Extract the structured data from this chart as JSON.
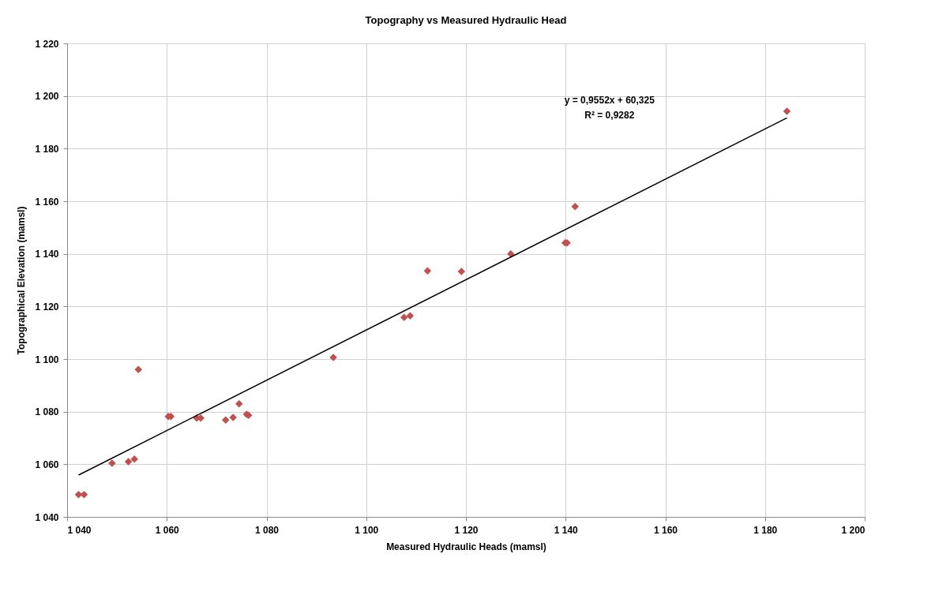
{
  "chart_data": {
    "type": "scatter",
    "title": "Topography vs Measured Hydraulic Head",
    "xlabel": "Measured Hydraulic Heads (mamsl)",
    "ylabel": "Topographical Elevation (mamsl)",
    "xlim": [
      1040,
      1200
    ],
    "ylim": [
      1040,
      1220
    ],
    "xticks": [
      {
        "value": 1040,
        "label": "1 040"
      },
      {
        "value": 1060,
        "label": "1 060"
      },
      {
        "value": 1080,
        "label": "1 080"
      },
      {
        "value": 1100,
        "label": "1 100"
      },
      {
        "value": 1120,
        "label": "1 120"
      },
      {
        "value": 1140,
        "label": "1 140"
      },
      {
        "value": 1160,
        "label": "1 160"
      },
      {
        "value": 1180,
        "label": "1 180"
      },
      {
        "value": 1200,
        "label": "1 200"
      }
    ],
    "yticks": [
      {
        "value": 1040,
        "label": "1 040"
      },
      {
        "value": 1060,
        "label": "1 060"
      },
      {
        "value": 1080,
        "label": "1 080"
      },
      {
        "value": 1100,
        "label": "1 100"
      },
      {
        "value": 1120,
        "label": "1 120"
      },
      {
        "value": 1140,
        "label": "1 140"
      },
      {
        "value": 1160,
        "label": "1 160"
      },
      {
        "value": 1180,
        "label": "1 180"
      },
      {
        "value": 1200,
        "label": "1 200"
      },
      {
        "value": 1220,
        "label": "1 220"
      }
    ],
    "grid": true,
    "legend": false,
    "series": [
      {
        "marker": "diamond",
        "color": "#c0504d",
        "x": [
          1042.3,
          1043.4,
          1049,
          1052.3,
          1053.5,
          1054.3,
          1060.3,
          1060.8,
          1066,
          1066.8,
          1071.8,
          1073.3,
          1074.5,
          1076,
          1076.4,
          1093.4,
          1107.6,
          1108.8,
          1112.3,
          1119.1,
          1129,
          1139.9,
          1140.3,
          1141.9,
          1184.4
        ],
        "values": [
          1048.5,
          1048.5,
          1060.4,
          1061,
          1062,
          1096,
          1078.2,
          1078.2,
          1077.6,
          1077.6,
          1076.8,
          1077.8,
          1083,
          1079,
          1078.6,
          1100.6,
          1115.8,
          1116.4,
          1133.5,
          1133.3,
          1140,
          1144.2,
          1144.2,
          1158,
          1194.2
        ]
      },
      {
        "type": "line",
        "marker": "none",
        "color": "#000000",
        "x": [
          1042.3,
          1184.4
        ],
        "values": [
          1055.9,
          1191.7
        ]
      }
    ],
    "annotations": [
      "y = 0,9552x + 60,325",
      "R² = 0,9282"
    ]
  }
}
